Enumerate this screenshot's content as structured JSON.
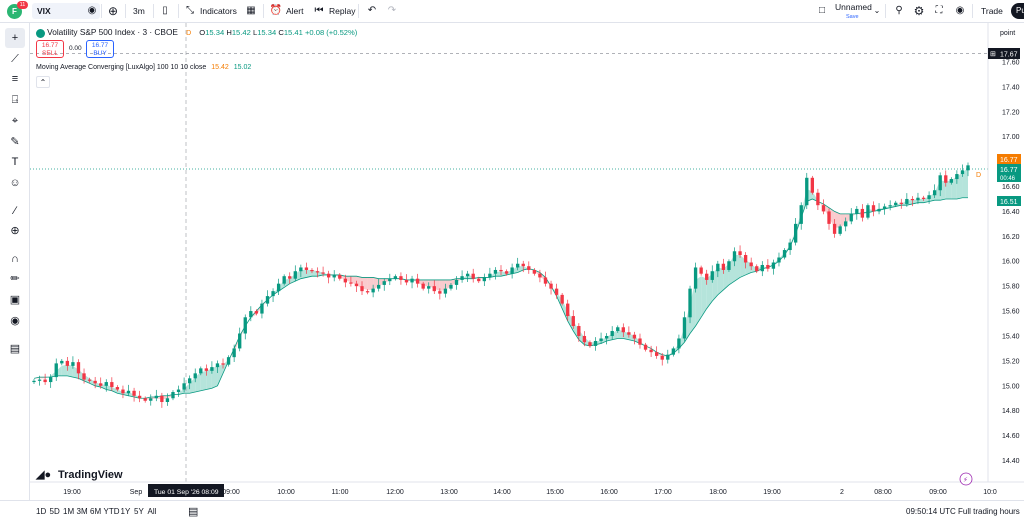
{
  "topbar": {
    "avatar_letter": "F",
    "avatar_badge": "11",
    "symbol": "VIX",
    "interval": "3m",
    "indicators": "Indicators",
    "alert": "Alert",
    "replay": "Replay",
    "layout_name": "Unnamed",
    "layout_status": "Save",
    "trade": "Trade",
    "publish": "Pu"
  },
  "legend": {
    "title": "Volatility S&P 500 Index · 3 · CBOE",
    "flag": "D",
    "o_label": "O",
    "o": "15.34",
    "h_label": "H",
    "h": "15.42",
    "l_label": "L",
    "l": "15.34",
    "c_label": "C",
    "c": "15.41",
    "change": "+0.08 (+0.52%)",
    "sell_price": "16.77",
    "sell_label": "SELL",
    "spread": "0.00",
    "buy_price": "16.77",
    "buy_label": "BUY",
    "indicator_name": "Moving Average Converging [LuxAlgo] 100 10 10 close",
    "ind_v1": "15.42",
    "ind_v2": "15.02"
  },
  "scale": {
    "mode": "point",
    "ticks": [
      "17.60",
      "17.40",
      "17.20",
      "17.00",
      "16.80",
      "16.60",
      "16.40",
      "16.20",
      "16.00",
      "15.80",
      "15.60",
      "15.40",
      "15.20",
      "15.00",
      "14.80",
      "14.60",
      "14.40"
    ],
    "label_dashed": "17.67",
    "label_last": "16.77",
    "label_last2": "16.77",
    "countdown": "00:46",
    "label_ma": "16.51"
  },
  "time_axis": {
    "ticks": [
      "19:00",
      "Sep",
      "09:00",
      "10:00",
      "11:00",
      "12:00",
      "13:00",
      "14:00",
      "15:00",
      "16:00",
      "17:00",
      "18:00",
      "19:00",
      "2",
      "08:00",
      "09:00",
      "10:0"
    ],
    "crosshair_label": "Tue 01 Sep '26 08:09"
  },
  "bottombar": {
    "ranges": [
      "1D",
      "5D",
      "1M",
      "3M",
      "6M",
      "YTD",
      "1Y",
      "5Y",
      "All"
    ],
    "clock": "09:50:14 UTC",
    "session": "Full trading hours"
  },
  "watermark": "TradingView",
  "colors": {
    "up": "#089981",
    "down": "#f23645",
    "fill_up": "#a8dfd5",
    "fill_down": "#f9c2c6",
    "accent": "#2962ff",
    "last_price": "#f57c00"
  },
  "chart_data": {
    "type": "candlestick",
    "ylim": [
      14.3,
      17.72
    ],
    "grid": false,
    "close": [
      15.04,
      15.05,
      15.03,
      15.07,
      15.18,
      15.2,
      15.16,
      15.19,
      15.1,
      15.05,
      15.04,
      15.02,
      15.0,
      15.03,
      14.99,
      14.97,
      14.94,
      14.96,
      14.92,
      14.9,
      14.88,
      14.9,
      14.92,
      14.87,
      14.9,
      14.95,
      14.97,
      15.02,
      15.06,
      15.1,
      15.14,
      15.12,
      15.15,
      15.18,
      15.17,
      15.23,
      15.3,
      15.42,
      15.55,
      15.6,
      15.58,
      15.66,
      15.72,
      15.76,
      15.82,
      15.88,
      15.86,
      15.92,
      15.95,
      15.93,
      15.92,
      15.91,
      15.9,
      15.87,
      15.89,
      15.86,
      15.83,
      15.82,
      15.8,
      15.76,
      15.75,
      15.78,
      15.81,
      15.84,
      15.86,
      15.88,
      15.85,
      15.83,
      15.86,
      15.82,
      15.78,
      15.8,
      15.76,
      15.74,
      15.78,
      15.81,
      15.85,
      15.88,
      15.9,
      15.86,
      15.84,
      15.87,
      15.9,
      15.93,
      15.92,
      15.9,
      15.95,
      15.98,
      15.96,
      15.93,
      15.9,
      15.87,
      15.82,
      15.78,
      15.73,
      15.66,
      15.56,
      15.48,
      15.4,
      15.35,
      15.32,
      15.36,
      15.38,
      15.4,
      15.44,
      15.47,
      15.43,
      15.41,
      15.38,
      15.33,
      15.29,
      15.27,
      15.24,
      15.21,
      15.25,
      15.3,
      15.38,
      15.55,
      15.78,
      15.95,
      15.9,
      15.85,
      15.92,
      15.98,
      15.93,
      16.0,
      16.08,
      16.05,
      15.99,
      15.96,
      15.92,
      15.97,
      15.94,
      15.99,
      16.03,
      16.09,
      16.15,
      16.3,
      16.45,
      16.67,
      16.55,
      16.45,
      16.4,
      16.3,
      16.22,
      16.28,
      16.32,
      16.38,
      16.42,
      16.35,
      16.45,
      16.4,
      16.42,
      16.44,
      16.45,
      16.47,
      16.46,
      16.5,
      16.49,
      16.51,
      16.5,
      16.53,
      16.57,
      16.69,
      16.63,
      16.66,
      16.7,
      16.73,
      16.77
    ],
    "ma_slow": [
      15.06,
      15.07,
      15.07,
      15.07,
      15.08,
      15.08,
      15.08,
      15.07,
      15.06,
      15.04,
      15.02,
      15.0,
      14.99,
      14.97,
      14.96,
      14.94,
      14.93,
      14.92,
      14.91,
      14.9,
      14.9,
      14.91,
      14.91,
      14.92,
      14.92,
      14.93,
      14.93,
      14.94,
      14.94,
      14.95,
      14.96,
      14.97,
      14.98,
      15.0,
      15.1,
      15.2,
      15.3,
      15.4,
      15.48,
      15.55,
      15.6,
      15.65,
      15.69,
      15.73,
      15.76,
      15.79,
      15.82,
      15.84,
      15.86,
      15.87,
      15.88,
      15.88,
      15.89,
      15.89,
      15.89,
      15.89,
      15.88,
      15.88,
      15.88,
      15.87,
      15.87,
      15.87,
      15.86,
      15.86,
      15.86,
      15.86,
      15.86,
      15.85,
      15.85,
      15.85,
      15.85,
      15.85,
      15.85,
      15.85,
      15.85,
      15.85,
      15.86,
      15.86,
      15.86,
      15.86,
      15.87,
      15.87,
      15.87,
      15.88,
      15.88,
      15.89,
      15.9,
      15.91,
      15.93,
      15.94,
      15.93,
      15.91,
      15.87,
      15.8,
      15.72,
      15.62,
      15.52,
      15.44,
      15.37,
      15.33,
      15.32,
      15.33,
      15.34,
      15.36,
      15.37,
      15.38,
      15.38,
      15.37,
      15.36,
      15.34,
      15.32,
      15.3,
      15.27,
      15.25,
      15.24,
      15.26,
      15.3,
      15.35,
      15.42,
      15.48,
      15.55,
      15.62,
      15.68,
      15.73,
      15.77,
      15.81,
      15.84,
      15.87,
      15.89,
      15.91,
      15.92,
      15.94,
      15.95,
      15.97,
      16.0,
      16.05,
      16.12,
      16.22,
      16.35,
      16.48,
      16.5,
      16.48,
      16.46,
      16.43,
      16.4,
      16.38,
      16.38,
      16.38,
      16.38,
      16.39,
      16.39,
      16.4,
      16.41,
      16.42,
      16.43,
      16.44,
      16.45,
      16.45,
      16.46,
      16.47,
      16.47,
      16.48,
      16.49,
      16.49,
      16.5,
      16.5,
      16.5,
      16.51,
      16.51
    ],
    "ma_fast": [
      15.06,
      15.06,
      15.06,
      15.08,
      15.12,
      15.16,
      15.17,
      15.16,
      15.13,
      15.09,
      15.06,
      15.03,
      15.01,
      15.01,
      14.99,
      14.97,
      14.95,
      14.95,
      14.93,
      14.91,
      14.89,
      14.89,
      14.9,
      14.89,
      14.9,
      14.92,
      14.94,
      14.98,
      15.02,
      15.07,
      15.11,
      15.12,
      15.14,
      15.16,
      15.17,
      15.21,
      15.27,
      15.37,
      15.48,
      15.55,
      15.57,
      15.63,
      15.69,
      15.74,
      15.79,
      15.85,
      15.86,
      15.9,
      15.93,
      15.93,
      15.93,
      15.92,
      15.91,
      15.89,
      15.89,
      15.87,
      15.85,
      15.83,
      15.81,
      15.78,
      15.77,
      15.77,
      15.8,
      15.82,
      15.85,
      15.87,
      15.86,
      15.84,
      15.85,
      15.83,
      15.8,
      15.8,
      15.78,
      15.76,
      15.77,
      15.8,
      15.83,
      15.86,
      15.89,
      15.88,
      15.86,
      15.86,
      15.88,
      15.91,
      15.92,
      15.91,
      15.93,
      15.96,
      15.96,
      15.94,
      15.92,
      15.88,
      15.84,
      15.8,
      15.75,
      15.69,
      15.6,
      15.52,
      15.45,
      15.39,
      15.35,
      15.35,
      15.37,
      15.39,
      15.42,
      15.45,
      15.44,
      15.42,
      15.4,
      15.36,
      15.32,
      15.29,
      15.26,
      15.23,
      15.24,
      15.28,
      15.34,
      15.47,
      15.66,
      15.85,
      15.88,
      15.86,
      15.9,
      15.95,
      15.94,
      15.98,
      16.05,
      16.05,
      16.01,
      15.98,
      15.94,
      15.96,
      15.95,
      15.98,
      16.02,
      16.07,
      16.13,
      16.25,
      16.39,
      16.58,
      16.56,
      16.49,
      16.43,
      16.35,
      16.27,
      16.27,
      16.3,
      16.35,
      16.39,
      16.36,
      16.42,
      16.41,
      16.42,
      16.43,
      16.44,
      16.46,
      16.46,
      16.49,
      16.49,
      16.5,
      16.5,
      16.52,
      16.55,
      16.65,
      16.64,
      16.65,
      16.68,
      16.71,
      16.75
    ]
  }
}
